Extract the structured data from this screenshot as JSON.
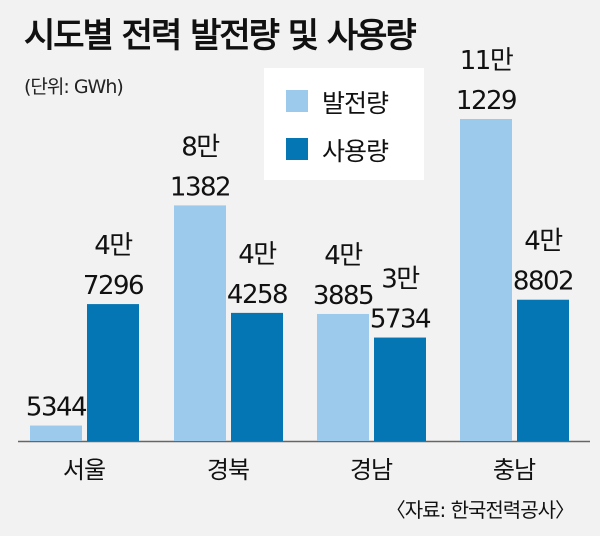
{
  "title": "시도별 전력 발전량 및 사용량",
  "unit": "(단위: GWh)",
  "source": "〈자료: 한국전력공사〉",
  "colors": {
    "generation": "#9ccaec",
    "consumption": "#0476b4",
    "background": "#f2f2f2"
  },
  "chart_data": {
    "type": "bar",
    "categories": [
      "서울",
      "경북",
      "경남",
      "충남"
    ],
    "series": [
      {
        "name": "발전량",
        "values": [
          5344,
          81382,
          43885,
          111229
        ],
        "labels": [
          [
            "5344"
          ],
          [
            "8만",
            "1382"
          ],
          [
            "4만",
            "3885"
          ],
          [
            "11만",
            "1229"
          ]
        ]
      },
      {
        "name": "사용량",
        "values": [
          47296,
          44258,
          35734,
          48802
        ],
        "labels": [
          [
            "4만",
            "7296"
          ],
          [
            "4만",
            "4258"
          ],
          [
            "3만",
            "5734"
          ],
          [
            "4만",
            "8802"
          ]
        ]
      }
    ],
    "legend": "top-center",
    "grid": false
  }
}
